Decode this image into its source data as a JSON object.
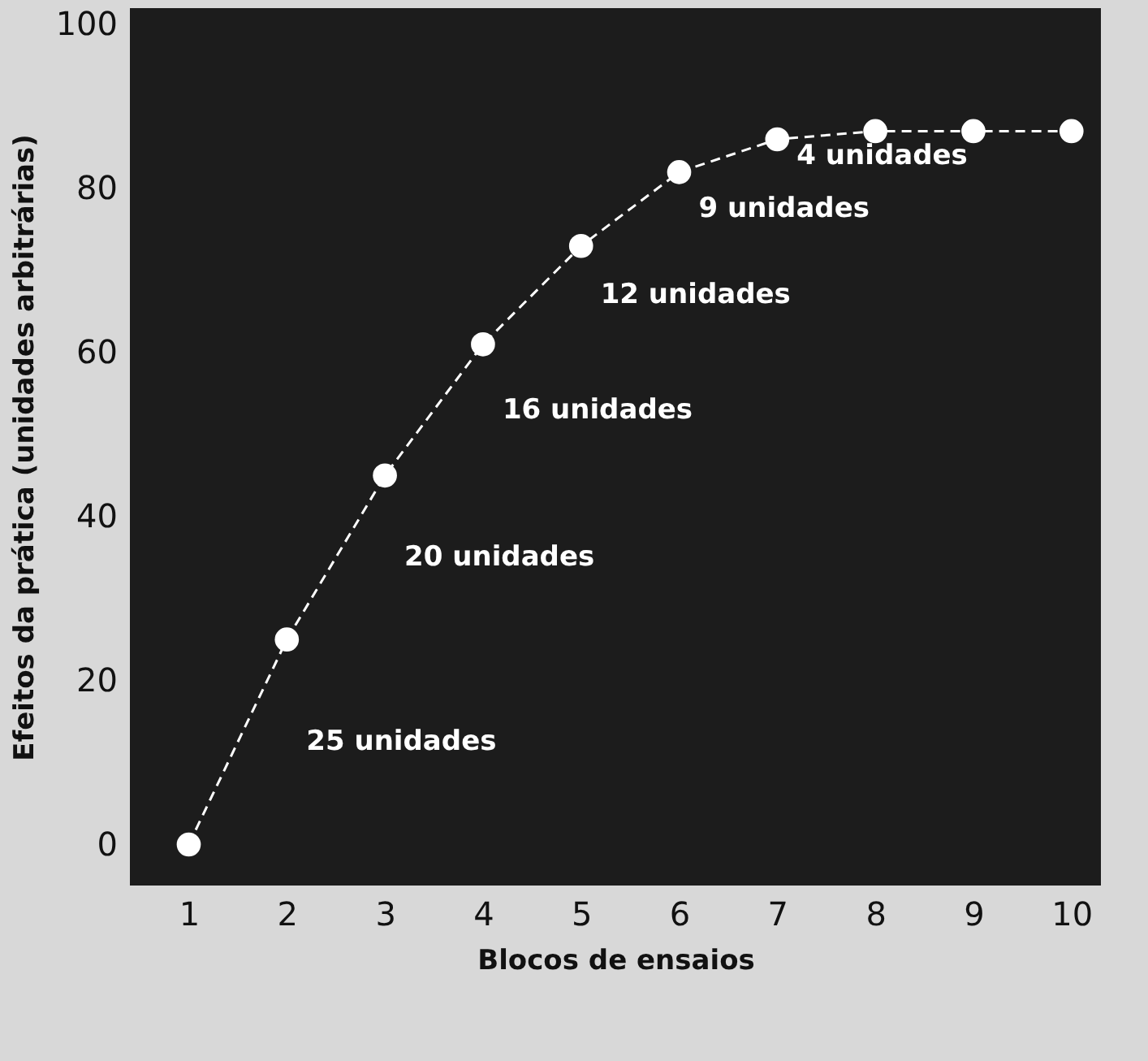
{
  "chart_data": {
    "type": "line",
    "xlabel": "Blocos de ensaios",
    "ylabel": "Efeitos da prática (unidades arbitrárias)",
    "x": [
      1,
      2,
      3,
      4,
      5,
      6,
      7,
      8,
      9,
      10
    ],
    "series": [
      {
        "color": "#ffffff",
        "values": [
          0,
          25,
          45,
          61,
          73,
          82,
          86,
          87,
          87,
          87
        ]
      }
    ],
    "xlim": [
      0.4,
      10.3
    ],
    "xticks": [
      1,
      2,
      3,
      4,
      5,
      6,
      7,
      8,
      9,
      10
    ],
    "ylim": [
      -5,
      102
    ],
    "yticks": [
      0,
      20,
      40,
      60,
      80,
      100
    ],
    "grid": false,
    "marker": "circle",
    "line_style": "dashed",
    "annotations": [
      "25 unidades",
      "20 unidades",
      "16 unidades",
      "12 unidades",
      "9 unidades",
      "4 unidades"
    ]
  }
}
